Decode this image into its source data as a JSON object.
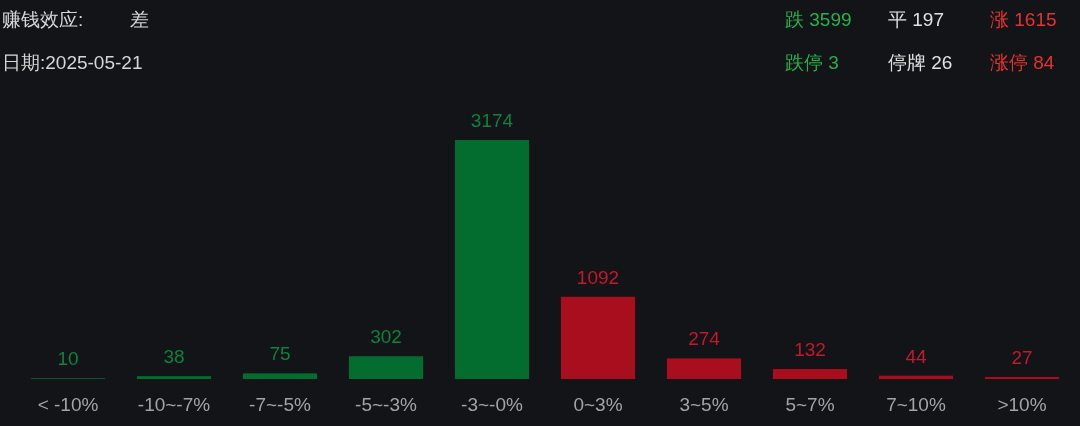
{
  "chart_data": {
    "type": "bar",
    "title": "赚钱效应:",
    "subtitle": "日期:2025-05-21",
    "categories": [
      "< -10%",
      "-10~-7%",
      "-7~-5%",
      "-5~-3%",
      "-3~-0%",
      "0~3%",
      "3~5%",
      "5~7%",
      "7~10%",
      ">10%"
    ],
    "values": [
      10,
      38,
      75,
      302,
      3174,
      1092,
      274,
      132,
      44,
      27
    ],
    "colors": [
      "#036d2f",
      "#036d2f",
      "#036d2f",
      "#036d2f",
      "#036d2f",
      "#a90e1e",
      "#a90e1e",
      "#a90e1e",
      "#a90e1e",
      "#a90e1e"
    ],
    "data_labels": true,
    "annotations": [
      "差",
      "跌 3599",
      "平 197",
      "涨 1615",
      "跌停 3",
      "停牌 26",
      "涨停 84"
    ]
  }
}
